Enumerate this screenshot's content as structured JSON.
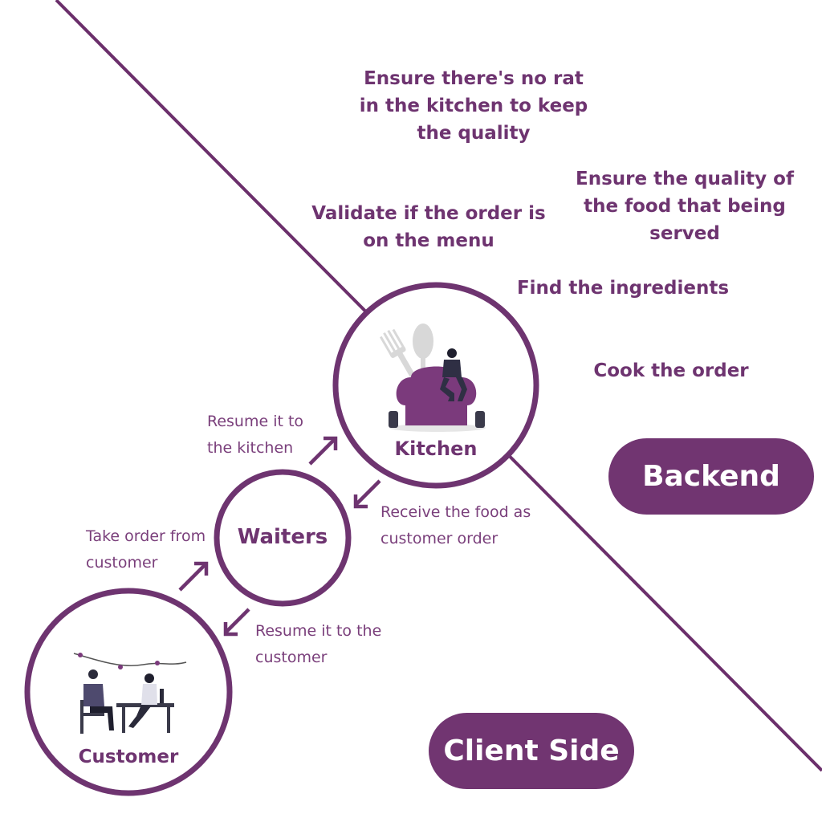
{
  "colors": {
    "accent": "#6e3470",
    "line": "#6b2f6b",
    "pill_bg": "#713571"
  },
  "backend_notes": {
    "rat": "Ensure there's no rat in the kitchen to keep the quality",
    "quality": "Ensure the quality of the food that being served",
    "validate": "Validate if the order is on the menu",
    "ingredients": "Find the ingredients",
    "cook": "Cook the order"
  },
  "nodes": {
    "kitchen": "Kitchen",
    "waiters": "Waiters",
    "customer": "Customer"
  },
  "flow_labels": {
    "resume_to_kitchen": "Resume it to the kitchen",
    "receive_food": "Receive the food as customer order",
    "take_order": "Take order from customer",
    "resume_to_customer": "Resume it to the customer"
  },
  "badges": {
    "backend": "Backend",
    "client_side": "Client Side"
  }
}
